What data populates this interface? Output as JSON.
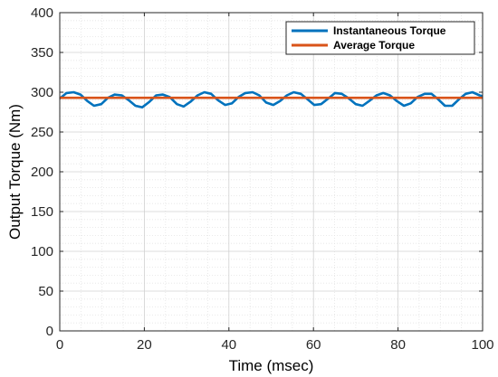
{
  "chart_data": {
    "type": "line",
    "title": "",
    "xlabel": "Time (msec)",
    "ylabel": "Output Torque (Nm)",
    "xlim": [
      0,
      100
    ],
    "ylim": [
      0,
      400
    ],
    "xticks": [
      0,
      20,
      40,
      60,
      80,
      100
    ],
    "yticks": [
      0,
      50,
      100,
      150,
      200,
      250,
      300,
      350,
      400
    ],
    "grid": true,
    "minor_grid": true,
    "legend_position": "top-right",
    "series": [
      {
        "name": "Instantaneous Torque",
        "color": "#0072BD",
        "x": [
          0,
          1.6,
          3.3,
          4.9,
          6.5,
          8.1,
          9.8,
          11.4,
          13,
          14.7,
          16.3,
          17.9,
          19.5,
          21.2,
          22.8,
          24.4,
          26,
          27.7,
          29.3,
          30.9,
          32.6,
          34.2,
          35.8,
          37.4,
          39.1,
          40.7,
          42.3,
          43.9,
          45.6,
          47.2,
          48.8,
          50.5,
          52.1,
          53.7,
          55.3,
          57,
          58.6,
          60.2,
          61.8,
          63.5,
          65.1,
          66.7,
          68.4,
          70,
          71.6,
          73.2,
          74.9,
          76.5,
          78.1,
          79.7,
          81.4,
          83,
          84.6,
          86.3,
          87.9,
          89.5,
          91.1,
          92.8,
          94.4,
          96,
          97.6,
          99.3,
          100
        ],
        "y": [
          292,
          299,
          300,
          297,
          289,
          283,
          285,
          293,
          297,
          296,
          290,
          283,
          281,
          288,
          296,
          297,
          294,
          285,
          282,
          288,
          296,
          300,
          298,
          290,
          284,
          286,
          294,
          299,
          300,
          296,
          287,
          284,
          289,
          296,
          300,
          298,
          291,
          284,
          285,
          292,
          299,
          298,
          292,
          285,
          283,
          289,
          296,
          299,
          296,
          289,
          283,
          286,
          294,
          298,
          298,
          291,
          283,
          283,
          291,
          298,
          300,
          296,
          295
        ]
      },
      {
        "name": "Average Torque",
        "color": "#D95319",
        "x": [
          0,
          100
        ],
        "y": [
          293,
          293
        ]
      }
    ]
  }
}
